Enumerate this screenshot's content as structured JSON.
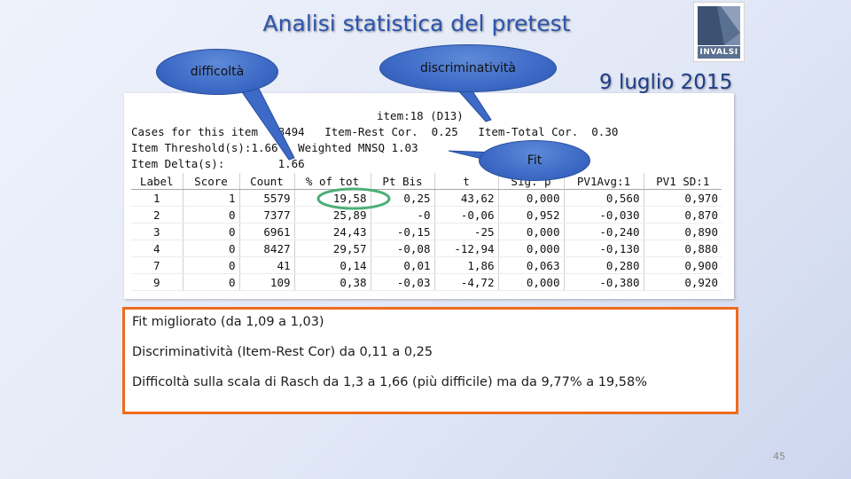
{
  "slide": {
    "title": "Analisi statistica del pretest",
    "date": "9 luglio 2015",
    "page_number": "45",
    "logo_text": "INVALSI"
  },
  "callouts": {
    "difficulty": "difficoltà",
    "discrimination": "discriminatività",
    "fit": "Fit"
  },
  "item_stats": {
    "item_title": "item:18 (D13)",
    "cases_line": "Cases for this item  28494   Item-Rest Cor.  0.25   Item-Total Cor.  0.30",
    "threshold_line": "Item Threshold(s):1.66   Weighted MNSQ 1.03",
    "delta_line": "Item Delta(s):        1.66",
    "columns": [
      "Label",
      "Score",
      "Count",
      "% of tot",
      "Pt Bis",
      "t",
      "Sig. p",
      "PV1Avg:1",
      "PV1 SD:1"
    ],
    "rows": [
      [
        "1",
        "1",
        "5579",
        "19,58",
        "0,25",
        "43,62",
        "0,000",
        "0,560",
        "0,970"
      ],
      [
        "2",
        "0",
        "7377",
        "25,89",
        "-0",
        "-0,06",
        "0,952",
        "-0,030",
        "0,870"
      ],
      [
        "3",
        "0",
        "6961",
        "24,43",
        "-0,15",
        "-25",
        "0,000",
        "-0,240",
        "0,890"
      ],
      [
        "4",
        "0",
        "8427",
        "29,57",
        "-0,08",
        "-12,94",
        "0,000",
        "-0,130",
        "0,880"
      ],
      [
        "7",
        "0",
        "41",
        "0,14",
        "0,01",
        "1,86",
        "0,063",
        "0,280",
        "0,900"
      ],
      [
        "9",
        "0",
        "109",
        "0,38",
        "-0,03",
        "-4,72",
        "0,000",
        "-0,380",
        "0,920"
      ]
    ]
  },
  "notes": [
    "Fit migliorato (da 1,09 a 1,03)",
    "Discriminatività (Item-Rest Cor) da 0,11 a 0,25",
    "Difficoltà sulla scala di Rasch da 1,3 a 1,66 (più difficile) ma da 9,77% a 19,58%"
  ],
  "colors": {
    "title": "#2c55b0",
    "callout_fill": "#3c6ac6",
    "notes_border": "#ee6b1c",
    "highlight_ellipse": "#4caf76"
  }
}
